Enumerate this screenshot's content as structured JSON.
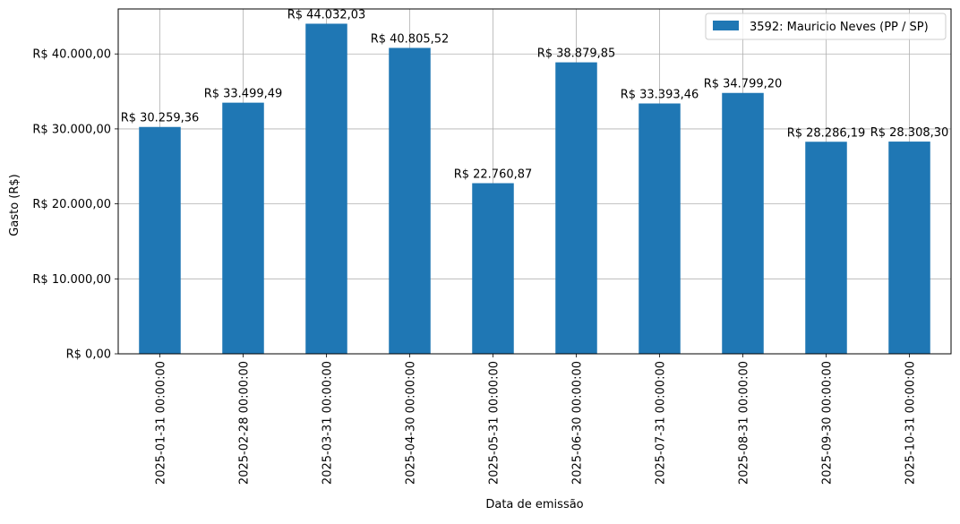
{
  "chart_data": {
    "type": "bar",
    "categories": [
      "2025-01-31 00:00:00",
      "2025-02-28 00:00:00",
      "2025-03-31 00:00:00",
      "2025-04-30 00:00:00",
      "2025-05-31 00:00:00",
      "2025-06-30 00:00:00",
      "2025-07-31 00:00:00",
      "2025-08-31 00:00:00",
      "2025-09-30 00:00:00",
      "2025-10-31 00:00:00"
    ],
    "series": [
      {
        "name": "3592: Mauricio Neves (PP / SP)",
        "color": "#1f77b4",
        "values": [
          30259.36,
          33499.49,
          44032.03,
          40805.52,
          22760.87,
          38879.85,
          33393.46,
          34799.2,
          28286.19,
          28308.3
        ]
      }
    ],
    "data_labels": [
      "R$ 30.259,36",
      "R$ 33.499,49",
      "R$ 44.032,03",
      "R$ 40.805,52",
      "R$ 22.760,87",
      "R$ 38.879,85",
      "R$ 33.393,46",
      "R$ 34.799,20",
      "R$ 28.286,19",
      "R$ 28.308,30"
    ],
    "xlabel": "Data de emissão",
    "ylabel": "Gasto (R$)",
    "ylim": [
      0,
      46000
    ],
    "yticks": [
      0,
      10000,
      20000,
      30000,
      40000
    ],
    "ytick_labels": [
      "R$ 0,00",
      "R$ 10.000,00",
      "R$ 20.000,00",
      "R$ 30.000,00",
      "R$ 40.000,00"
    ],
    "grid": true,
    "legend_position": "top-right"
  }
}
